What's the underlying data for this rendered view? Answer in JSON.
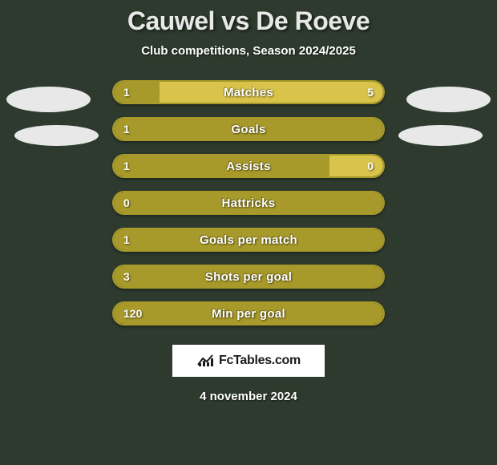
{
  "title": "Cauwel vs De Roeve",
  "subtitle": "Club competitions, Season 2024/2025",
  "footer_date": "4 november 2024",
  "logo_text": "FcTables.com",
  "colors": {
    "background": "#2d3a2d",
    "left_bar": "#a89a2a",
    "right_bar": "#d9c34a",
    "border": "#a89a2a",
    "ellipse": "#e8e8e8",
    "logo_bg": "#ffffff",
    "text": "#ffffff"
  },
  "bars": [
    {
      "label": "Matches",
      "left_val": "1",
      "right_val": "5",
      "left_pct": 17,
      "right_pct": 83,
      "show_left_val": true,
      "show_right_val": true
    },
    {
      "label": "Goals",
      "left_val": "1",
      "right_val": "",
      "left_pct": 100,
      "right_pct": 0,
      "show_left_val": true,
      "show_right_val": false
    },
    {
      "label": "Assists",
      "left_val": "1",
      "right_val": "0",
      "left_pct": 80,
      "right_pct": 20,
      "show_left_val": true,
      "show_right_val": true
    },
    {
      "label": "Hattricks",
      "left_val": "0",
      "right_val": "",
      "left_pct": 100,
      "right_pct": 0,
      "show_left_val": true,
      "show_right_val": false
    },
    {
      "label": "Goals per match",
      "left_val": "1",
      "right_val": "",
      "left_pct": 100,
      "right_pct": 0,
      "show_left_val": true,
      "show_right_val": false
    },
    {
      "label": "Shots per goal",
      "left_val": "3",
      "right_val": "",
      "left_pct": 100,
      "right_pct": 0,
      "show_left_val": true,
      "show_right_val": false
    },
    {
      "label": "Min per goal",
      "left_val": "120",
      "right_val": "",
      "left_pct": 100,
      "right_pct": 0,
      "show_left_val": true,
      "show_right_val": false
    }
  ]
}
